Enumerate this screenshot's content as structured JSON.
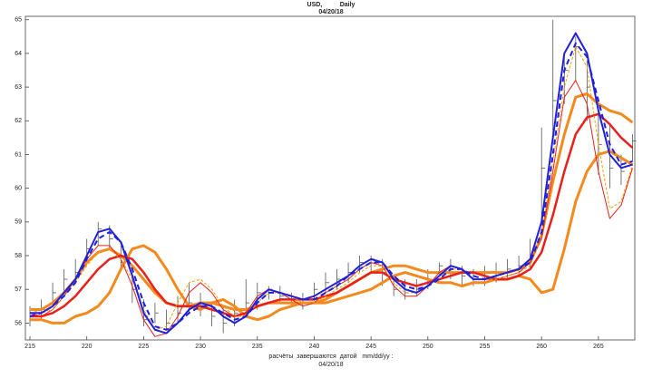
{
  "chart_data": {
    "type": "line",
    "title": "USD,          Daily",
    "subtitle": "04/20/18",
    "xlabel": "расчёты  завершаются  датой   mm/dd/yy :",
    "xlabel_date": "04/20/18",
    "xlim": [
      214.6,
      268.2
    ],
    "ylim": [
      55.5,
      65.1
    ],
    "xticks": [
      215,
      220,
      225,
      230,
      235,
      240,
      245,
      250,
      255,
      260,
      265
    ],
    "yticks": [
      56,
      57,
      58,
      59,
      60,
      61,
      62,
      63,
      64,
      65
    ],
    "x": [
      215,
      216,
      217,
      218,
      219,
      220,
      221,
      222,
      223,
      224,
      225,
      226,
      227,
      228,
      229,
      230,
      231,
      232,
      233,
      234,
      235,
      236,
      237,
      238,
      239,
      240,
      241,
      242,
      243,
      244,
      245,
      246,
      247,
      248,
      249,
      250,
      251,
      252,
      253,
      254,
      255,
      256,
      257,
      258,
      259,
      260,
      261,
      262,
      263,
      264,
      265,
      266,
      267,
      268
    ],
    "bars": {
      "color": "#555555",
      "high": [
        56.5,
        56.7,
        57.2,
        57.6,
        57.9,
        58.5,
        59.0,
        58.9,
        58.3,
        57.5,
        56.7,
        56.6,
        56.4,
        56.8,
        57.2,
        56.9,
        56.6,
        56.5,
        56.7,
        57.3,
        57.2,
        57.1,
        57.1,
        56.9,
        56.9,
        57.2,
        57.5,
        57.6,
        57.8,
        58.0,
        58.0,
        57.9,
        57.4,
        57.3,
        57.3,
        57.6,
        57.8,
        57.9,
        57.7,
        57.6,
        57.7,
        57.8,
        57.9,
        58.0,
        58.5,
        61.8,
        65.0,
        64.0,
        64.5,
        63.8,
        62.2,
        61.9,
        61.0,
        61.6
      ],
      "low": [
        55.9,
        56.1,
        56.5,
        56.9,
        57.2,
        57.8,
        58.3,
        58.2,
        57.6,
        56.6,
        55.9,
        56.0,
        55.8,
        56.0,
        56.3,
        56.2,
        55.9,
        55.7,
        55.9,
        56.2,
        56.4,
        56.7,
        56.6,
        56.5,
        56.4,
        56.7,
        56.9,
        57.0,
        57.2,
        57.5,
        57.5,
        57.1,
        56.8,
        56.7,
        56.8,
        57.0,
        57.4,
        57.3,
        57.1,
        57.1,
        57.1,
        57.2,
        57.3,
        57.4,
        57.6,
        59.0,
        61.5,
        62.5,
        63.2,
        62.0,
        60.4,
        60.0,
        60.1,
        60.8
      ],
      "close": [
        56.1,
        56.4,
        56.9,
        57.3,
        57.5,
        58.2,
        58.8,
        58.5,
        57.8,
        57.0,
        56.1,
        56.3,
        56.0,
        56.3,
        56.6,
        56.6,
        56.2,
        56.0,
        56.3,
        56.6,
        56.9,
        57.0,
        56.8,
        56.7,
        56.6,
        57.0,
        57.2,
        57.3,
        57.5,
        57.8,
        57.9,
        57.5,
        57.0,
        56.9,
        57.0,
        57.3,
        57.7,
        57.6,
        57.4,
        57.3,
        57.4,
        57.5,
        57.6,
        57.7,
        58.0,
        60.6,
        62.6,
        63.5,
        64.2,
        63.0,
        61.3,
        60.6,
        60.5,
        61.4
      ]
    },
    "series": [
      {
        "color": "#f4891e",
        "width": 3,
        "values": [
          56.1,
          56.1,
          56.0,
          56.0,
          56.2,
          56.3,
          56.5,
          56.9,
          57.6,
          58.2,
          58.3,
          58.1,
          57.6,
          57.0,
          56.5,
          56.4,
          56.6,
          56.7,
          56.5,
          56.2,
          56.1,
          56.2,
          56.4,
          56.5,
          56.6,
          56.6,
          56.6,
          56.7,
          56.8,
          56.9,
          57.0,
          57.2,
          57.4,
          57.5,
          57.4,
          57.3,
          57.2,
          57.2,
          57.1,
          57.2,
          57.2,
          57.3,
          57.3,
          57.4,
          57.3,
          56.9,
          57.0,
          58.2,
          59.6,
          60.5,
          61.0,
          61.1,
          60.9,
          60.7
        ]
      },
      {
        "color": "#f4891e",
        "width": 3,
        "values": [
          56.4,
          56.4,
          56.6,
          56.9,
          57.3,
          57.8,
          58.1,
          58.2,
          58.0,
          57.7,
          57.3,
          56.9,
          56.6,
          56.5,
          56.5,
          56.6,
          56.6,
          56.5,
          56.4,
          56.4,
          56.5,
          56.6,
          56.6,
          56.6,
          56.6,
          56.6,
          56.7,
          56.9,
          57.1,
          57.3,
          57.5,
          57.6,
          57.7,
          57.7,
          57.6,
          57.5,
          57.5,
          57.5,
          57.5,
          57.5,
          57.5,
          57.5,
          57.5,
          57.6,
          57.8,
          58.6,
          60.2,
          61.6,
          62.7,
          62.8,
          62.5,
          62.3,
          62.2,
          61.95
        ]
      },
      {
        "color": "#e8201a",
        "width": 2.5,
        "values": [
          56.2,
          56.2,
          56.3,
          56.5,
          56.8,
          57.2,
          57.6,
          57.9,
          58.0,
          57.9,
          57.5,
          57.0,
          56.6,
          56.5,
          56.5,
          56.5,
          56.4,
          56.3,
          56.2,
          56.3,
          56.5,
          56.6,
          56.7,
          56.7,
          56.7,
          56.7,
          56.8,
          56.9,
          57.1,
          57.3,
          57.5,
          57.5,
          57.3,
          57.2,
          57.1,
          57.2,
          57.3,
          57.4,
          57.5,
          57.5,
          57.4,
          57.3,
          57.3,
          57.4,
          57.6,
          58.1,
          59.2,
          60.5,
          61.6,
          62.1,
          62.2,
          61.9,
          61.5,
          61.2
        ]
      },
      {
        "color": "#e8201a",
        "width": 1,
        "values": [
          56.3,
          56.2,
          56.4,
          56.8,
          57.3,
          57.9,
          58.3,
          58.3,
          57.9,
          57.1,
          56.1,
          55.6,
          55.7,
          56.2,
          56.9,
          57.2,
          56.9,
          56.4,
          56.2,
          56.3,
          56.8,
          57.0,
          56.9,
          56.7,
          56.5,
          56.6,
          56.9,
          57.1,
          57.3,
          57.6,
          57.8,
          57.7,
          57.1,
          56.8,
          56.8,
          57.1,
          57.5,
          57.7,
          57.6,
          57.3,
          57.3,
          57.3,
          57.4,
          57.5,
          57.8,
          58.5,
          60.5,
          62.7,
          63.2,
          62.5,
          60.5,
          59.1,
          59.5,
          60.6
        ]
      },
      {
        "color": "#f4a000",
        "width": 1,
        "dashed": true,
        "values": [
          56.4,
          56.3,
          56.4,
          56.8,
          57.2,
          57.7,
          58.1,
          58.2,
          57.9,
          57.3,
          56.4,
          55.8,
          55.9,
          56.6,
          57.2,
          57.3,
          57.0,
          56.5,
          56.2,
          56.2,
          56.6,
          56.9,
          56.9,
          56.8,
          56.6,
          56.6,
          56.8,
          57.0,
          57.2,
          57.5,
          57.7,
          57.7,
          57.2,
          56.9,
          56.9,
          57.1,
          57.4,
          57.6,
          57.6,
          57.3,
          57.3,
          57.3,
          57.4,
          57.5,
          57.7,
          58.6,
          60.8,
          63.0,
          64.2,
          63.6,
          61.3,
          59.4,
          59.6,
          60.7
        ]
      },
      {
        "color": "#2020d8",
        "width": 2,
        "dashed": true,
        "values": [
          56.2,
          56.3,
          56.5,
          56.8,
          57.2,
          57.9,
          58.5,
          58.7,
          58.4,
          57.6,
          56.6,
          55.9,
          55.8,
          56.0,
          56.3,
          56.5,
          56.5,
          56.3,
          56.1,
          56.2,
          56.6,
          56.9,
          56.9,
          56.8,
          56.7,
          56.7,
          56.9,
          57.1,
          57.4,
          57.6,
          57.8,
          57.8,
          57.4,
          57.1,
          57.0,
          57.1,
          57.3,
          57.6,
          57.6,
          57.4,
          57.3,
          57.4,
          57.5,
          57.6,
          57.8,
          58.7,
          61.0,
          63.5,
          64.3,
          63.9,
          62.6,
          61.3,
          60.7,
          60.8
        ]
      },
      {
        "color": "#2020d8",
        "width": 2,
        "values": [
          56.3,
          56.3,
          56.5,
          56.9,
          57.3,
          58.0,
          58.7,
          58.8,
          58.4,
          57.4,
          56.3,
          55.8,
          55.7,
          56.0,
          56.4,
          56.6,
          56.5,
          56.2,
          56.0,
          56.2,
          56.7,
          57.0,
          56.9,
          56.8,
          56.7,
          56.8,
          57.0,
          57.2,
          57.4,
          57.7,
          57.9,
          57.8,
          57.3,
          57.0,
          56.9,
          57.1,
          57.4,
          57.7,
          57.6,
          57.3,
          57.3,
          57.4,
          57.5,
          57.6,
          57.9,
          59.0,
          61.5,
          64.0,
          64.6,
          64.0,
          62.3,
          61.0,
          60.6,
          60.7
        ]
      }
    ]
  }
}
